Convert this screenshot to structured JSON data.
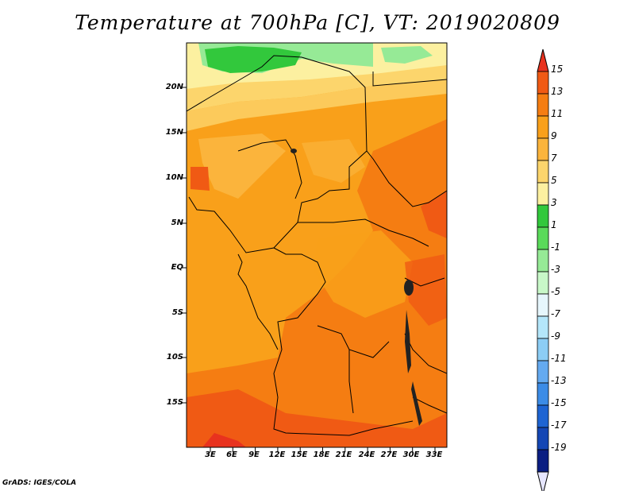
{
  "title": "Temperature at 700hPa [C], VT: 2019020809",
  "footer": "GrADS: IGES/COLA",
  "map": {
    "lat_labels": [
      "20N",
      "15N",
      "10N",
      "5N",
      "EQ",
      "5S",
      "10S",
      "15S"
    ],
    "lon_labels": [
      "3E",
      "6E",
      "9E",
      "12E",
      "15E",
      "18E",
      "21E",
      "24E",
      "27E",
      "30E",
      "33E"
    ]
  },
  "colorbar": {
    "labels": [
      "15",
      "13",
      "11",
      "9",
      "7",
      "5",
      "3",
      "1",
      "-1",
      "-3",
      "-5",
      "-7",
      "-9",
      "-11",
      "-13",
      "-15",
      "-17",
      "-19"
    ],
    "colors": [
      "#e8321e",
      "#f05a14",
      "#f57d12",
      "#f9a01a",
      "#fbb43c",
      "#fcd56c",
      "#fcf0a0",
      "#32c83c",
      "#5ada5a",
      "#96ea96",
      "#c8f8c8",
      "#e6f6fc",
      "#b4e6fa",
      "#8ccdf5",
      "#64aaf0",
      "#3c8ce6",
      "#1e64d2",
      "#1446b4",
      "#0a1e82",
      "#e6e6ff"
    ]
  }
}
